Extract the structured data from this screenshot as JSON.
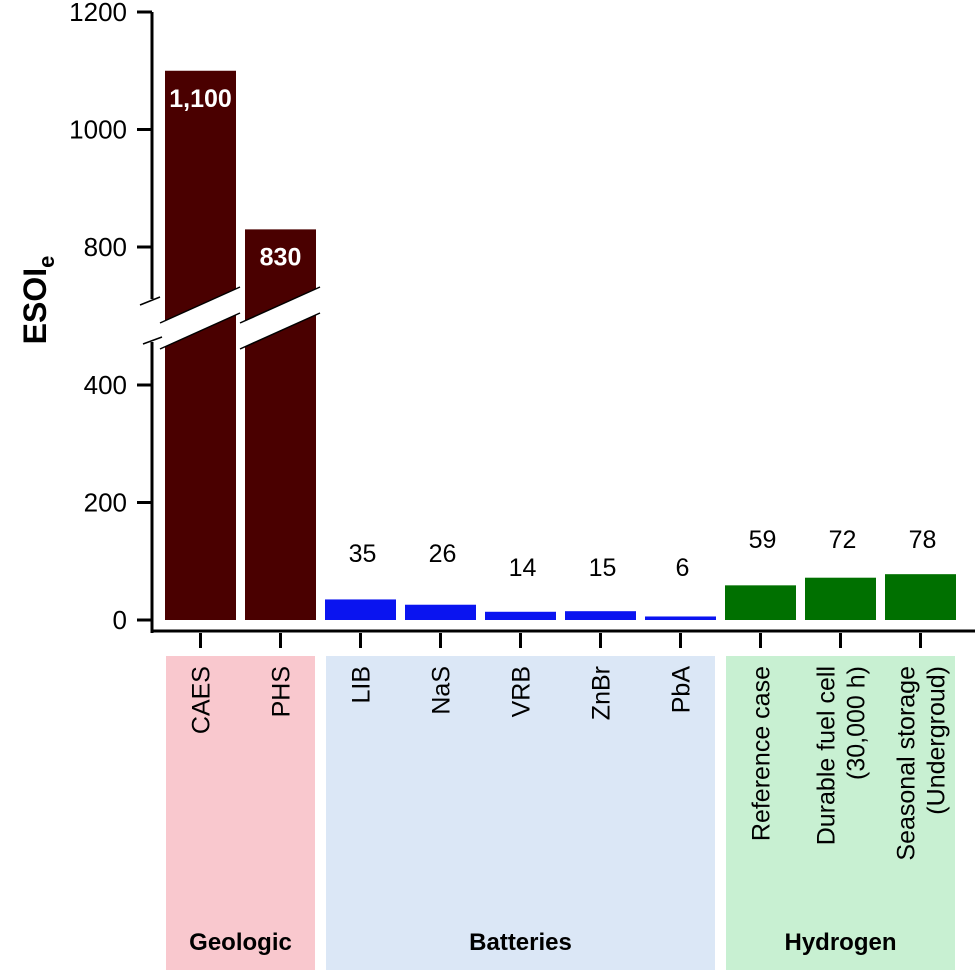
{
  "chart_data": {
    "type": "bar",
    "ylabel": "ESOI",
    "ylabel_subscript": "e",
    "y_ticks": [
      0,
      200,
      400,
      800,
      1000,
      1200
    ],
    "y_tick_labels": [
      "0",
      "200",
      "400",
      "800",
      "1000",
      "1200"
    ],
    "ylim": [
      0,
      1200
    ],
    "axis_break": [
      473,
      710
    ],
    "grid": false,
    "categories": [
      {
        "lines": [
          "CAES"
        ],
        "value": 1100,
        "label": "1,100",
        "group": 0
      },
      {
        "lines": [
          "PHS"
        ],
        "value": 830,
        "label": "830",
        "group": 0
      },
      {
        "lines": [
          "LIB"
        ],
        "value": 35,
        "label": "35",
        "group": 1
      },
      {
        "lines": [
          "NaS"
        ],
        "value": 26,
        "label": "26",
        "group": 1
      },
      {
        "lines": [
          "VRB"
        ],
        "value": 14,
        "label": "14",
        "group": 1
      },
      {
        "lines": [
          "ZnBr"
        ],
        "value": 15,
        "label": "15",
        "group": 1
      },
      {
        "lines": [
          "PbA"
        ],
        "value": 6,
        "label": "6",
        "group": 1
      },
      {
        "lines": [
          "Reference case"
        ],
        "value": 59,
        "label": "59",
        "group": 2
      },
      {
        "lines": [
          "Durable fuel cell",
          "(30,000 h)"
        ],
        "value": 72,
        "label": "72",
        "group": 2
      },
      {
        "lines": [
          "Seasonal storage",
          "(Undergroud)"
        ],
        "value": 78,
        "label": "78",
        "group": 2
      }
    ],
    "groups": [
      {
        "name": "Geologic",
        "bar_color": "#4a0000",
        "box_color": "#f9c8ce"
      },
      {
        "name": "Batteries",
        "bar_color": "#0a14f0",
        "box_color": "#dbe7f6"
      },
      {
        "name": "Hydrogen",
        "bar_color": "#007000",
        "box_color": "#c8f0d2"
      }
    ]
  }
}
